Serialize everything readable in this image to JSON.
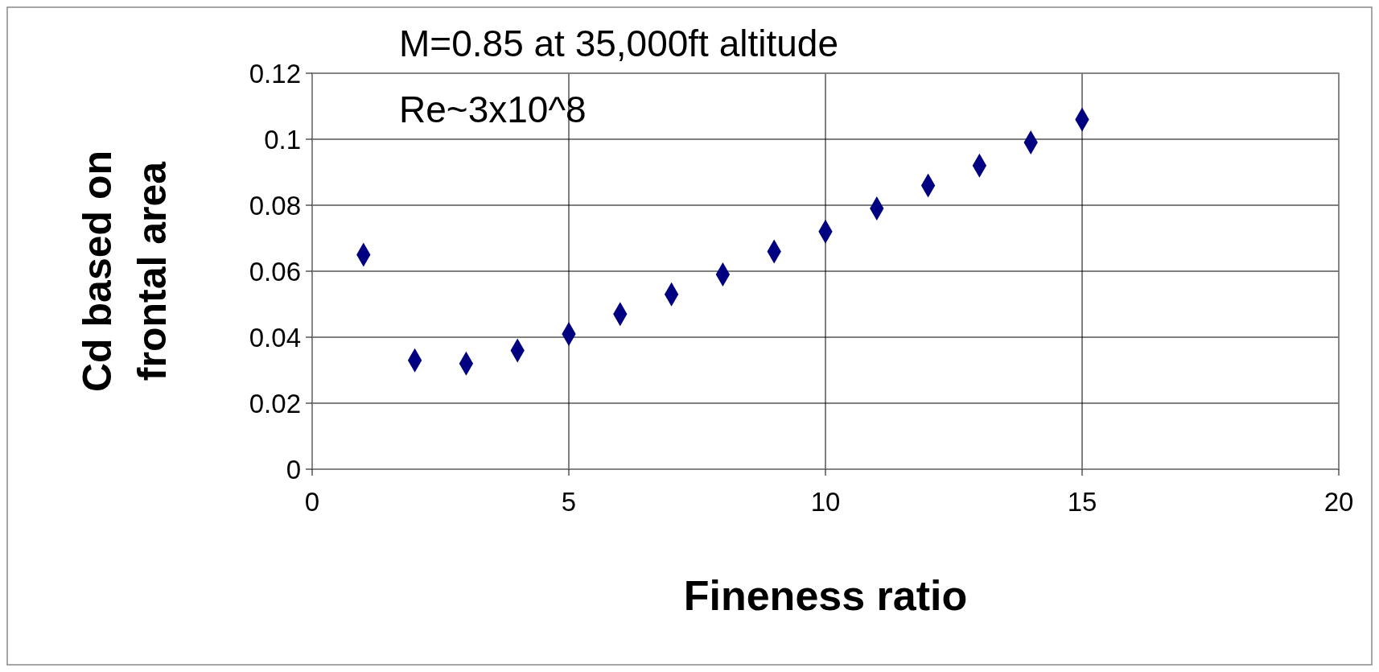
{
  "chart_data": {
    "type": "scatter",
    "xlabel": "Fineness ratio",
    "ylabel": "Cd based on frontal area",
    "annotations": [
      "M=0.85 at 35,000ft altitude",
      "Re~3x10^8"
    ],
    "x": [
      1,
      2,
      3,
      4,
      5,
      6,
      7,
      8,
      9,
      10,
      11,
      12,
      13,
      14,
      15
    ],
    "series": [
      {
        "color": "#000080",
        "values": [
          0.065,
          0.033,
          0.032,
          0.036,
          0.041,
          0.047,
          0.053,
          0.059,
          0.066,
          0.072,
          0.079,
          0.086,
          0.092,
          0.099,
          0.106
        ]
      }
    ],
    "xlim": [
      0,
      20
    ],
    "xticks": [
      0,
      5,
      10,
      15,
      20
    ],
    "ylim": [
      0,
      0.12
    ],
    "yticks": [
      0,
      0.02,
      0.04,
      0.06,
      0.08,
      {
        "value": 0.1,
        "label": "0.1"
      },
      0.12
    ],
    "grid": true,
    "marker": "diamond"
  }
}
